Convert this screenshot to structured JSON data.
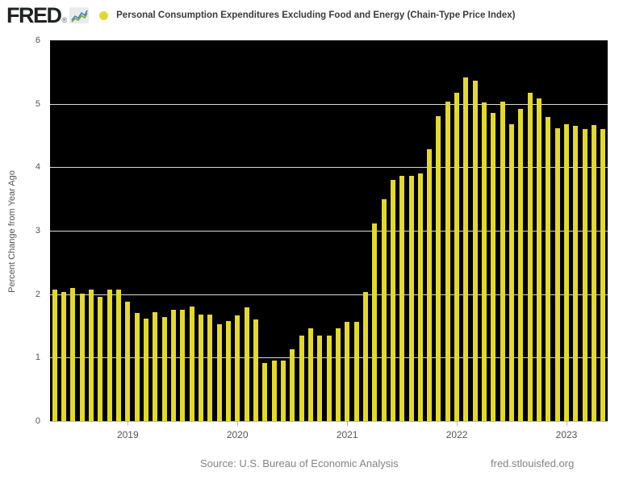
{
  "header": {
    "logo_text": "FRED",
    "registered_mark": "®"
  },
  "footer": {
    "source": "Source: U.S. Bureau of Economic Analysis",
    "site": "fred.stlouisfed.org"
  },
  "colors": {
    "bar_yellow": "#e2d73a",
    "plot_background": "#000000",
    "gridline_white": "#ffffff",
    "axis_text_gray": "#555555",
    "footer_text_gray": "#848484",
    "title_text_dark": "#3b3b3b",
    "logo_dark": "#1f2326",
    "tick_blue_gray": "#a9bac9",
    "axis_line_gray": "#b8b8b8",
    "logo_icon_blue": "#4a7ebb",
    "logo_icon_green": "#71a83f"
  },
  "chart_data": {
    "type": "bar",
    "title": "Personal Consumption Expenditures Excluding Food and Energy (Chain-Type Price Index)",
    "xlabel": "",
    "ylabel": "Percent Change from Year Ago",
    "ylim": [
      0,
      6
    ],
    "yticks": [
      0,
      1,
      2,
      3,
      4,
      5,
      6
    ],
    "xticks": [
      "2019",
      "2020",
      "2021",
      "2022",
      "2023"
    ],
    "grid": "horizontal",
    "legend_position": "top-left",
    "x": [
      "2018-05",
      "2018-06",
      "2018-07",
      "2018-08",
      "2018-09",
      "2018-10",
      "2018-11",
      "2018-12",
      "2019-01",
      "2019-02",
      "2019-03",
      "2019-04",
      "2019-05",
      "2019-06",
      "2019-07",
      "2019-08",
      "2019-09",
      "2019-10",
      "2019-11",
      "2019-12",
      "2020-01",
      "2020-02",
      "2020-03",
      "2020-04",
      "2020-05",
      "2020-06",
      "2020-07",
      "2020-08",
      "2020-09",
      "2020-10",
      "2020-11",
      "2020-12",
      "2021-01",
      "2021-02",
      "2021-03",
      "2021-04",
      "2021-05",
      "2021-06",
      "2021-07",
      "2021-08",
      "2021-09",
      "2021-10",
      "2021-11",
      "2021-12",
      "2022-01",
      "2022-02",
      "2022-03",
      "2022-04",
      "2022-05",
      "2022-06",
      "2022-07",
      "2022-08",
      "2022-09",
      "2022-10",
      "2022-11",
      "2022-12",
      "2023-01",
      "2023-02",
      "2023-03",
      "2023-04",
      "2023-05"
    ],
    "values": [
      2.07,
      2.03,
      2.1,
      2.01,
      2.07,
      1.96,
      2.07,
      2.07,
      1.88,
      1.71,
      1.61,
      1.72,
      1.64,
      1.75,
      1.75,
      1.81,
      1.68,
      1.68,
      1.52,
      1.58,
      1.67,
      1.79,
      1.6,
      0.91,
      0.95,
      0.95,
      1.13,
      1.35,
      1.46,
      1.35,
      1.35,
      1.46,
      1.56,
      1.56,
      2.04,
      3.11,
      3.5,
      3.8,
      3.86,
      3.87,
      3.9,
      4.29,
      4.81,
      5.03,
      5.18,
      5.41,
      5.36,
      5.02,
      4.86,
      5.03,
      4.68,
      4.92,
      5.18,
      5.09,
      4.79,
      4.61,
      4.68,
      4.65,
      4.6,
      4.67,
      4.6
    ]
  }
}
